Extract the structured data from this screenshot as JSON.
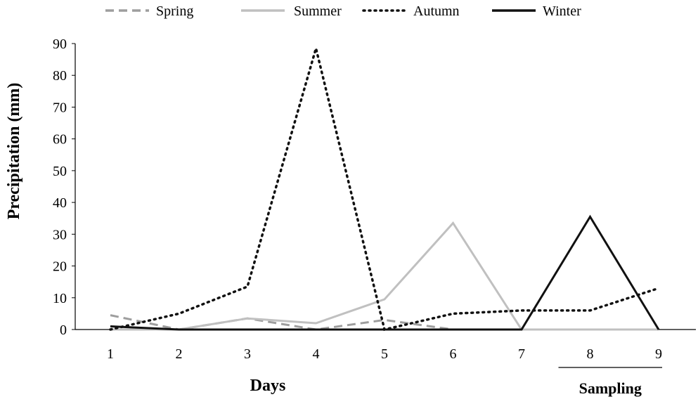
{
  "chart_data": {
    "type": "line",
    "title": "",
    "xlabel": "Days",
    "ylabel": "Precipitation (mm)",
    "x": [
      1,
      2,
      3,
      4,
      5,
      6,
      7,
      8,
      9
    ],
    "x_tick_labels": [
      "1",
      "2",
      "3",
      "4",
      "5",
      "6",
      "7",
      "8",
      "9"
    ],
    "ylim": [
      0,
      90
    ],
    "y_ticks": [
      0,
      10,
      20,
      30,
      40,
      50,
      60,
      70,
      80,
      90
    ],
    "grid": false,
    "legend_position": "top",
    "series": [
      {
        "name": "Spring",
        "style": "dashed",
        "color": "#9e9e9e",
        "values": [
          4.5,
          0,
          3.5,
          0,
          3,
          0,
          0,
          0,
          0
        ]
      },
      {
        "name": "Summer",
        "style": "solid",
        "color": "#c0c0c0",
        "values": [
          0,
          0,
          3.5,
          2,
          9.5,
          33.5,
          0,
          0,
          0
        ]
      },
      {
        "name": "Autumn",
        "style": "dotted",
        "color": "#111111",
        "values": [
          0,
          5,
          13.5,
          88.5,
          0,
          5,
          6,
          6,
          13
        ]
      },
      {
        "name": "Winter",
        "style": "solid",
        "color": "#111111",
        "values": [
          1,
          0,
          0,
          0,
          0,
          0,
          0,
          35.5,
          0
        ]
      }
    ],
    "annotations": [
      {
        "text": "Sampling",
        "x_start": 8,
        "x_end": 9
      }
    ]
  }
}
